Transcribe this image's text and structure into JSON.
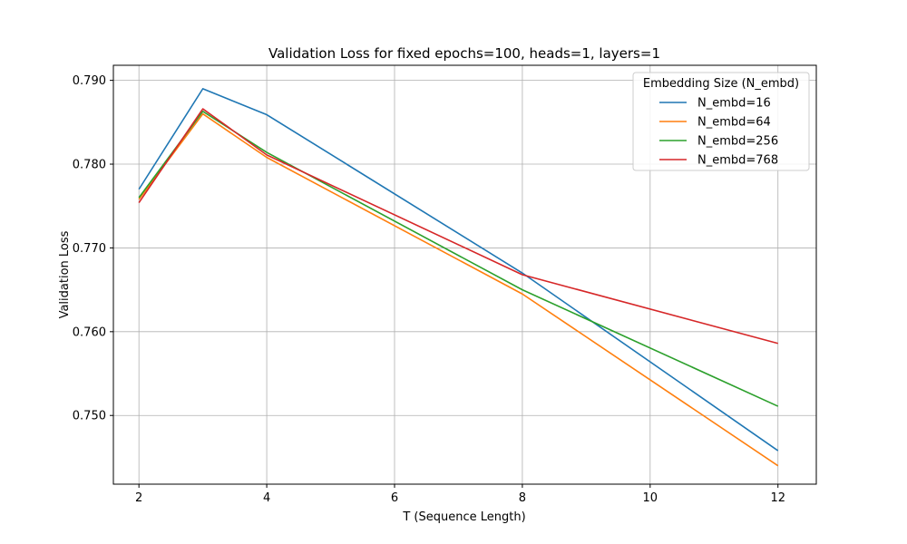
{
  "chart_data": {
    "type": "line",
    "title": "Validation Loss for fixed epochs=100, heads=1, layers=1",
    "xlabel": "T (Sequence Length)",
    "ylabel": "Validation Loss",
    "x": [
      2,
      3,
      4,
      8,
      12
    ],
    "xlim": [
      1.6,
      12.6
    ],
    "ylim": [
      0.7418,
      0.7918
    ],
    "xticks": [
      2,
      4,
      6,
      8,
      10,
      12
    ],
    "yticks": [
      0.75,
      0.76,
      0.77,
      0.78,
      0.79
    ],
    "ytick_labels": [
      "0.750",
      "0.760",
      "0.770",
      "0.780",
      "0.790"
    ],
    "grid": true,
    "legend": {
      "title": "Embedding Size (N_embd)",
      "placement": "top-right"
    },
    "series": [
      {
        "name": "N_embd=16",
        "color": "#1f77b4",
        "values": [
          0.777,
          0.789,
          0.7859,
          0.767,
          0.7458
        ]
      },
      {
        "name": "N_embd=64",
        "color": "#ff7f0e",
        "values": [
          0.7758,
          0.786,
          0.7808,
          0.7645,
          0.744
        ]
      },
      {
        "name": "N_embd=256",
        "color": "#2ca02c",
        "values": [
          0.776,
          0.7863,
          0.7814,
          0.765,
          0.7511
        ]
      },
      {
        "name": "N_embd=768",
        "color": "#d62728",
        "values": [
          0.7754,
          0.7866,
          0.7811,
          0.7668,
          0.7586
        ]
      }
    ]
  }
}
